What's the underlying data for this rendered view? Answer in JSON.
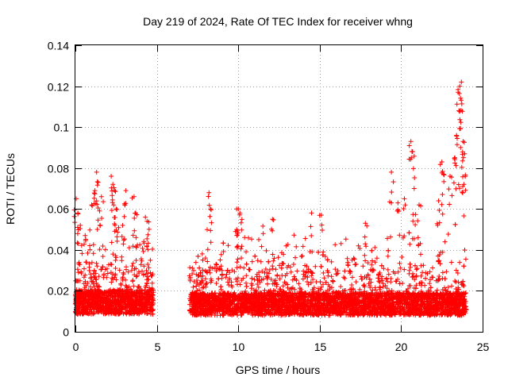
{
  "chart_data": {
    "type": "scatter",
    "title": "Day 219 of 2024, Rate Of TEC Index for receiver whng",
    "xlabel": "GPS time / hours",
    "ylabel": "ROTI / TECUs",
    "xlim": [
      0,
      25
    ],
    "ylim": [
      0,
      0.14
    ],
    "xticks": [
      0,
      5,
      10,
      15,
      20,
      25
    ],
    "xtick_labels": [
      "0",
      "5",
      "10",
      "15",
      "20",
      "25"
    ],
    "yticks": [
      0,
      0.02,
      0.04,
      0.06,
      0.08,
      0.1,
      0.12,
      0.14
    ],
    "ytick_labels": [
      "0",
      "0.02",
      "0.04",
      "0.06",
      "0.08",
      "0.1",
      "0.12",
      "0.14"
    ],
    "grid": true,
    "marker": "+",
    "color": "#ff0000",
    "segments": [
      {
        "x_start": 0.0,
        "x_end": 4.8,
        "base": 0.014,
        "spread": 0.012
      },
      {
        "x_start": 7.0,
        "x_end": 24.0,
        "base": 0.013,
        "spread": 0.011
      }
    ],
    "highlights": [
      {
        "x": 0.05,
        "y": 0.065
      },
      {
        "x": 0.15,
        "y": 0.058
      },
      {
        "x": 0.3,
        "y": 0.052
      },
      {
        "x": 0.6,
        "y": 0.047
      },
      {
        "x": 1.0,
        "y": 0.062
      },
      {
        "x": 1.2,
        "y": 0.069
      },
      {
        "x": 1.3,
        "y": 0.078
      },
      {
        "x": 1.4,
        "y": 0.073
      },
      {
        "x": 1.6,
        "y": 0.066
      },
      {
        "x": 2.2,
        "y": 0.076
      },
      {
        "x": 2.3,
        "y": 0.072
      },
      {
        "x": 2.4,
        "y": 0.069
      },
      {
        "x": 2.5,
        "y": 0.06
      },
      {
        "x": 2.9,
        "y": 0.052
      },
      {
        "x": 3.1,
        "y": 0.069
      },
      {
        "x": 3.6,
        "y": 0.066
      },
      {
        "x": 3.7,
        "y": 0.058
      },
      {
        "x": 4.3,
        "y": 0.056
      },
      {
        "x": 4.4,
        "y": 0.054
      },
      {
        "x": 8.2,
        "y": 0.068
      },
      {
        "x": 8.3,
        "y": 0.06
      },
      {
        "x": 9.9,
        "y": 0.06
      },
      {
        "x": 10.0,
        "y": 0.06
      },
      {
        "x": 10.1,
        "y": 0.058
      },
      {
        "x": 12.1,
        "y": 0.055
      },
      {
        "x": 14.5,
        "y": 0.058
      },
      {
        "x": 15.1,
        "y": 0.057
      },
      {
        "x": 17.8,
        "y": 0.053
      },
      {
        "x": 19.4,
        "y": 0.078
      },
      {
        "x": 19.8,
        "y": 0.063
      },
      {
        "x": 20.2,
        "y": 0.065
      },
      {
        "x": 20.6,
        "y": 0.093
      },
      {
        "x": 20.7,
        "y": 0.088
      },
      {
        "x": 20.8,
        "y": 0.07
      },
      {
        "x": 21.1,
        "y": 0.062
      },
      {
        "x": 22.3,
        "y": 0.064
      },
      {
        "x": 22.5,
        "y": 0.083
      },
      {
        "x": 22.6,
        "y": 0.077
      },
      {
        "x": 23.0,
        "y": 0.076
      },
      {
        "x": 23.3,
        "y": 0.085
      },
      {
        "x": 23.4,
        "y": 0.096
      },
      {
        "x": 23.5,
        "y": 0.117
      },
      {
        "x": 23.6,
        "y": 0.12
      },
      {
        "x": 23.7,
        "y": 0.122
      },
      {
        "x": 23.55,
        "y": 0.108
      },
      {
        "x": 23.65,
        "y": 0.09
      },
      {
        "x": 23.8,
        "y": 0.093
      },
      {
        "x": 23.9,
        "y": 0.087
      },
      {
        "x": 23.85,
        "y": 0.072
      }
    ],
    "seed": 219
  }
}
